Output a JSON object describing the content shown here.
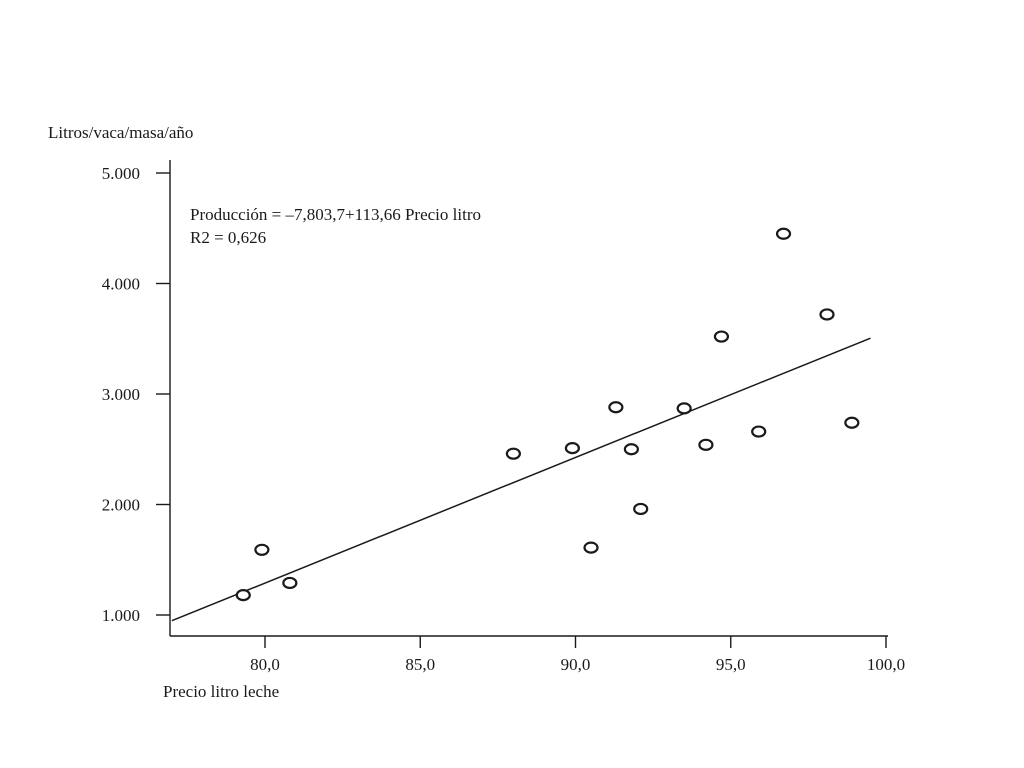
{
  "chart_data": {
    "type": "scatter",
    "title": "",
    "ylabel": "Litros/vaca/masa/año",
    "xlabel": "Precio litro leche",
    "xlim": [
      77.0,
      100.0
    ],
    "ylim": [
      800,
      5100
    ],
    "x_ticks": [
      80.0,
      85.0,
      90.0,
      95.0,
      100.0
    ],
    "x_tick_labels": [
      "80,0",
      "85,0",
      "90,0",
      "95,0",
      "100,0"
    ],
    "y_ticks": [
      1000,
      2000,
      3000,
      4000,
      5000
    ],
    "y_tick_labels": [
      "1.000",
      "2.000",
      "3.000",
      "4.000",
      "5.000"
    ],
    "grid": false,
    "annotations": [
      "Producción = –7,803,7+113,66 Precio litro",
      "R2 = 0,626"
    ],
    "regression": {
      "intercept": -7803.7,
      "slope": 113.66,
      "r2": 0.626
    },
    "points": [
      {
        "x": 79.3,
        "y": 1180
      },
      {
        "x": 79.9,
        "y": 1590
      },
      {
        "x": 80.8,
        "y": 1290
      },
      {
        "x": 88.0,
        "y": 2460
      },
      {
        "x": 89.9,
        "y": 2510
      },
      {
        "x": 90.5,
        "y": 1610
      },
      {
        "x": 91.3,
        "y": 2880
      },
      {
        "x": 91.8,
        "y": 2500
      },
      {
        "x": 92.1,
        "y": 1960
      },
      {
        "x": 93.5,
        "y": 2870
      },
      {
        "x": 94.2,
        "y": 2540
      },
      {
        "x": 94.7,
        "y": 3520
      },
      {
        "x": 95.9,
        "y": 2660
      },
      {
        "x": 96.7,
        "y": 4450
      },
      {
        "x": 98.1,
        "y": 3720
      },
      {
        "x": 98.9,
        "y": 2740
      }
    ]
  }
}
